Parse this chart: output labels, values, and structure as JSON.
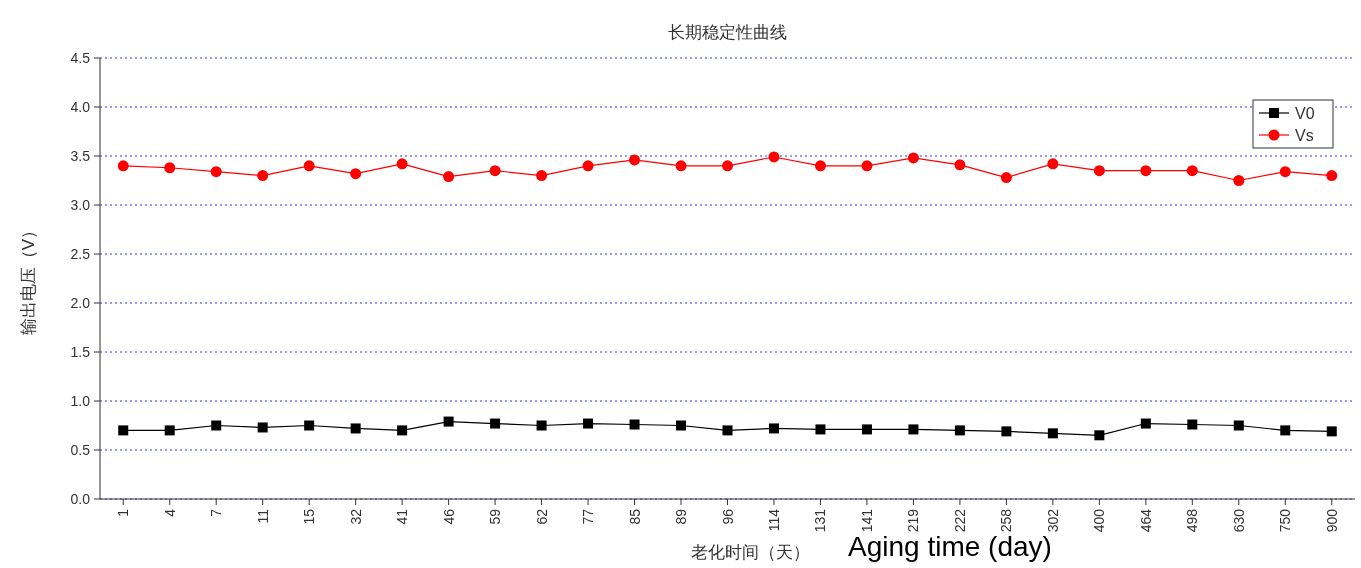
{
  "chart_data": {
    "type": "line",
    "title": "长期稳定性曲线",
    "xlabel": "老化时间（天）",
    "ylabel": "输出电压（V）",
    "annotations": [
      "Aging time (day)"
    ],
    "categories": [
      "1",
      "4",
      "7",
      "11",
      "15",
      "32",
      "41",
      "46",
      "59",
      "62",
      "77",
      "85",
      "89",
      "96",
      "114",
      "131",
      "141",
      "219",
      "222",
      "258",
      "302",
      "400",
      "464",
      "498",
      "630",
      "750",
      "900"
    ],
    "series": [
      {
        "name": "V0",
        "color": "#000000",
        "marker": "square",
        "values": [
          0.7,
          0.7,
          0.75,
          0.73,
          0.75,
          0.72,
          0.7,
          0.79,
          0.77,
          0.75,
          0.77,
          0.76,
          0.75,
          0.7,
          0.72,
          0.71,
          0.71,
          0.71,
          0.7,
          0.69,
          0.67,
          0.65,
          0.77,
          0.76,
          0.75,
          0.7,
          0.69
        ]
      },
      {
        "name": "Vs",
        "color": "#ff0000",
        "marker": "circle",
        "values": [
          3.4,
          3.38,
          3.34,
          3.3,
          3.4,
          3.32,
          3.42,
          3.29,
          3.35,
          3.3,
          3.4,
          3.46,
          3.4,
          3.4,
          3.49,
          3.4,
          3.4,
          3.48,
          3.41,
          3.28,
          3.42,
          3.35,
          3.35,
          3.35,
          3.25,
          3.34,
          3.3
        ]
      }
    ],
    "ylim": [
      0,
      4.5
    ],
    "yticks": [
      {
        "value": 0,
        "label": "0.0"
      },
      0.5,
      {
        "value": 1,
        "label": "1.0"
      },
      1.5,
      {
        "value": 2,
        "label": "2.0"
      },
      2.5,
      {
        "value": 3,
        "label": "3.0"
      },
      3.5,
      {
        "value": 4,
        "label": "4.0"
      },
      4.5
    ],
    "grid": "y",
    "legend": "top right",
    "line_style": "solid"
  }
}
